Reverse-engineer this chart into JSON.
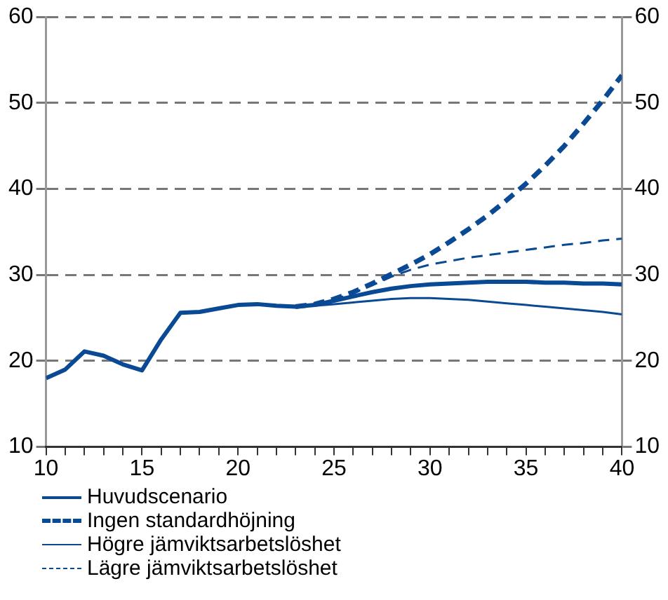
{
  "chart_data": {
    "type": "line",
    "x": [
      10,
      11,
      12,
      13,
      14,
      15,
      16,
      17,
      18,
      19,
      20,
      21,
      22,
      23,
      24,
      25,
      26,
      27,
      28,
      29,
      30,
      31,
      32,
      33,
      34,
      35,
      36,
      37,
      38,
      39,
      40
    ],
    "series": [
      {
        "name": "Huvudscenario",
        "color": "#0a4a94",
        "line_style": "solid",
        "values": [
          18.0,
          19.0,
          21.1,
          20.6,
          19.6,
          18.9,
          22.5,
          25.6,
          25.7,
          26.1,
          26.5,
          26.6,
          26.4,
          26.3,
          26.5,
          27.0,
          27.5,
          28.0,
          28.4,
          28.7,
          28.9,
          29.0,
          29.1,
          29.2,
          29.2,
          29.2,
          29.1,
          29.1,
          29.0,
          29.0,
          28.9
        ]
      },
      {
        "name": "Ingen standardhöjning",
        "color": "#0a4a94",
        "line_style": "dashed",
        "values": [
          null,
          null,
          null,
          null,
          null,
          null,
          null,
          null,
          null,
          null,
          null,
          null,
          null,
          26.3,
          26.6,
          27.2,
          28.0,
          29.0,
          30.1,
          31.2,
          32.4,
          33.8,
          35.3,
          36.9,
          38.7,
          40.6,
          42.7,
          45.0,
          47.6,
          50.3,
          53.2
        ]
      },
      {
        "name": "Högre jämviktsarbetslöshet",
        "color": "#0a4a94",
        "line_style": "solid",
        "values": [
          null,
          null,
          null,
          null,
          null,
          null,
          null,
          null,
          null,
          null,
          null,
          null,
          null,
          null,
          26.4,
          26.6,
          26.8,
          27.0,
          27.2,
          27.3,
          27.3,
          27.2,
          27.1,
          26.9,
          26.7,
          26.5,
          26.3,
          26.1,
          25.9,
          25.7,
          25.4
        ]
      },
      {
        "name": "Lägre jämviktsarbetslöshet",
        "color": "#0a4a94",
        "line_style": "dashed",
        "values": [
          null,
          null,
          null,
          null,
          null,
          null,
          null,
          null,
          null,
          null,
          null,
          null,
          null,
          null,
          26.6,
          27.1,
          27.9,
          28.8,
          29.8,
          30.6,
          31.2,
          31.6,
          32.0,
          32.3,
          32.6,
          32.9,
          33.2,
          33.5,
          33.7,
          34.0,
          34.2
        ]
      }
    ],
    "xlim": [
      10,
      40
    ],
    "xticks": [
      10,
      {
        "value": 11,
        "label": null
      },
      {
        "value": 12,
        "label": null
      },
      {
        "value": 13,
        "label": null
      },
      {
        "value": 14,
        "label": null
      },
      15,
      {
        "value": 16,
        "label": null
      },
      {
        "value": 17,
        "label": null
      },
      {
        "value": 18,
        "label": null
      },
      {
        "value": 19,
        "label": null
      },
      20,
      {
        "value": 21,
        "label": null
      },
      {
        "value": 22,
        "label": null
      },
      {
        "value": 23,
        "label": null
      },
      {
        "value": 24,
        "label": null
      },
      25,
      {
        "value": 26,
        "label": null
      },
      {
        "value": 27,
        "label": null
      },
      {
        "value": 28,
        "label": null
      },
      {
        "value": 29,
        "label": null
      },
      30,
      {
        "value": 31,
        "label": null
      },
      {
        "value": 32,
        "label": null
      },
      {
        "value": 33,
        "label": null
      },
      {
        "value": 34,
        "label": null
      },
      35,
      {
        "value": 36,
        "label": null
      },
      {
        "value": 37,
        "label": null
      },
      {
        "value": 38,
        "label": null
      },
      {
        "value": 39,
        "label": null
      },
      40
    ],
    "ylim": [
      10,
      60
    ],
    "yticks": [
      10,
      20,
      30,
      40,
      50,
      60
    ],
    "y2lim": [
      10,
      60
    ],
    "y2ticks": [
      10,
      20,
      30,
      40,
      50,
      60
    ],
    "grid": "y",
    "legend": "bottom",
    "marker": "none"
  }
}
